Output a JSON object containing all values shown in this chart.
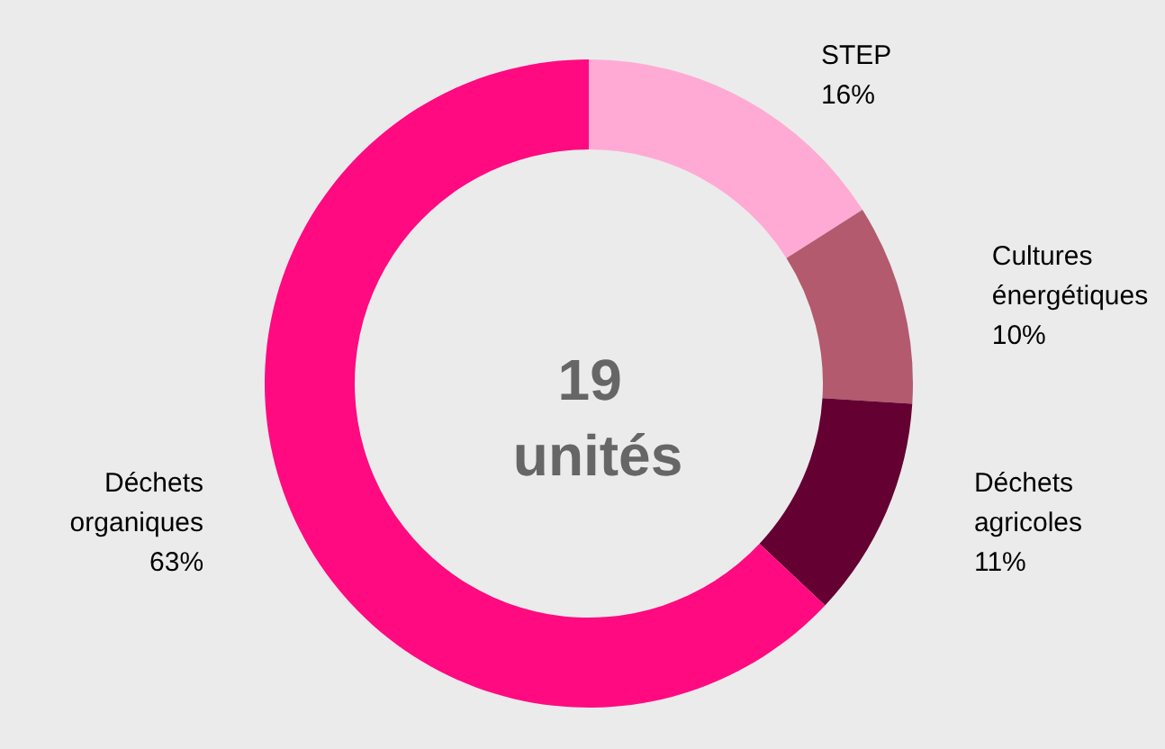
{
  "chart_data": {
    "type": "donut",
    "title": "19 unités",
    "categories": [
      "STEP",
      "Cultures énergétiques",
      "Déchets agricoles",
      "Déchets organiques"
    ],
    "values": [
      16,
      10,
      11,
      63
    ],
    "colors": [
      "#ffaad4",
      "#b35a6e",
      "#640032",
      "#ff0a80"
    ],
    "value_labels": [
      "16%",
      "10%",
      "11%",
      "63%"
    ],
    "legend": false
  }
}
